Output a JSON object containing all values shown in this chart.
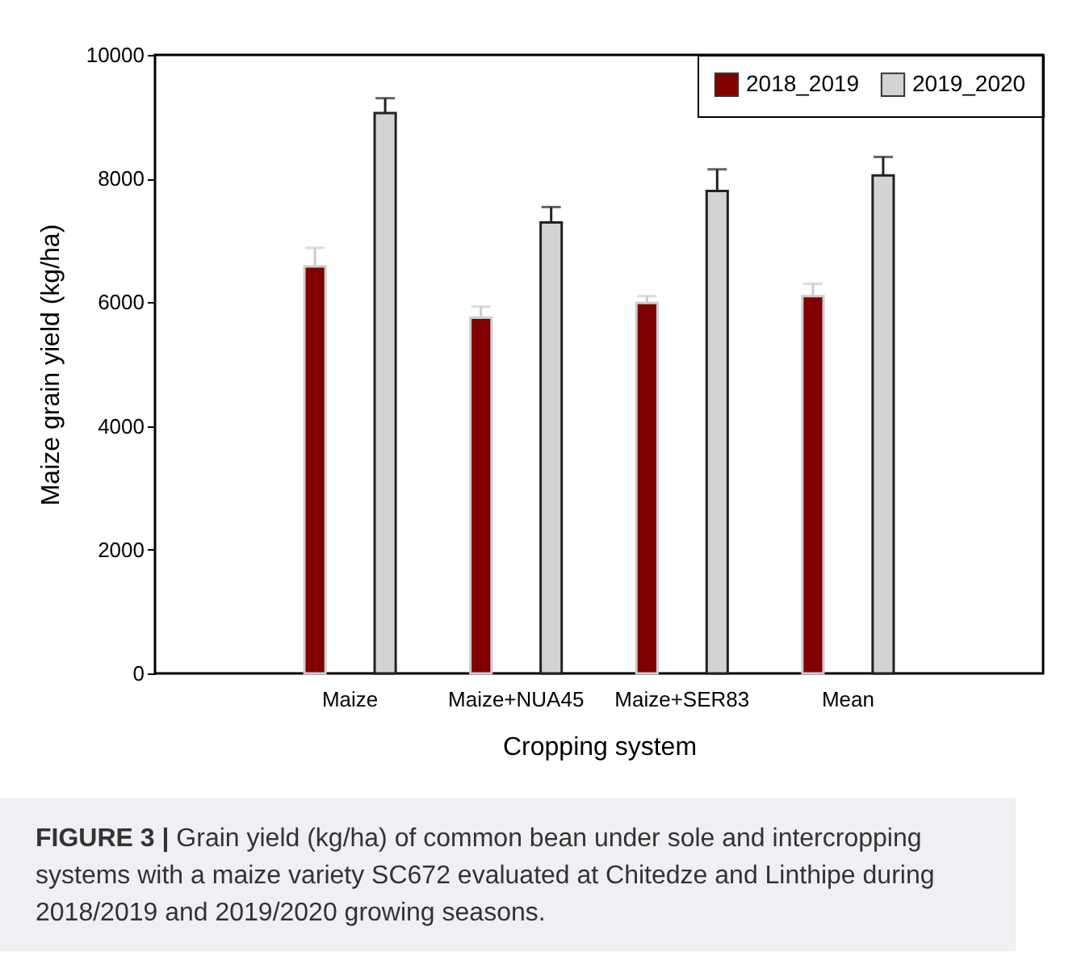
{
  "chart_data": {
    "type": "bar",
    "categories": [
      "Maize",
      "Maize+NUA45",
      "Maize+SER83",
      "Mean"
    ],
    "series": [
      {
        "name": "2018_2019",
        "color": "#800000",
        "values": [
          6580,
          5750,
          5990,
          6100
        ],
        "errors": [
          [
            6580,
            6880
          ],
          [
            5750,
            5930
          ],
          [
            5990,
            6100
          ],
          [
            6100,
            6300
          ]
        ]
      },
      {
        "name": "2019_2020",
        "color": "#d3d3d3",
        "values": [
          9060,
          7290,
          7800,
          8050
        ],
        "errors": [
          [
            9060,
            9300
          ],
          [
            7290,
            7540
          ],
          [
            7800,
            8150
          ],
          [
            8050,
            8350
          ]
        ]
      }
    ],
    "xlabel": "Cropping system",
    "ylabel": "Maize grain yield (kg/ha)",
    "ylim": [
      0,
      10000
    ],
    "yticks": [
      0,
      2000,
      4000,
      6000,
      8000,
      10000
    ],
    "grid": false,
    "legend": "top right",
    "annotations": [
      "FIGURE 3 | Grain yield (kg/ha) of common bean under sole and intercropping systems with a maize variety SC672 evaluated at Chitedze and Linthipe during 2018/2019 and 2019/2020 growing seasons."
    ]
  }
}
